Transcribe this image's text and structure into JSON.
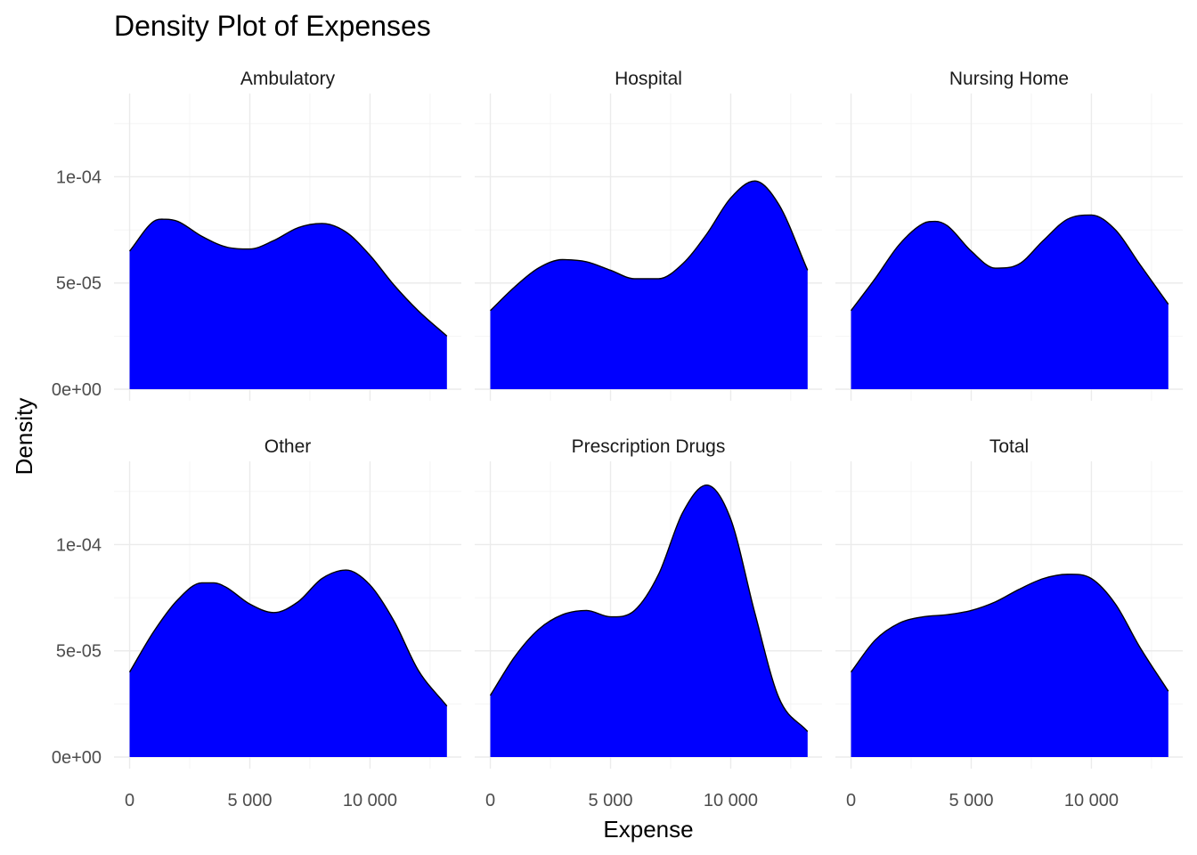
{
  "chart_data": {
    "type": "area",
    "title": "Density Plot of Expenses",
    "xlabel": "Expense",
    "ylabel": "Density",
    "fill_color": "#0000ff",
    "outline_color": "#000000",
    "grid": true,
    "xlim": [
      0,
      13200
    ],
    "ylim": [
      0,
      0.000135
    ],
    "x_ticks": [
      {
        "value": 0,
        "label": "0"
      },
      {
        "value": 5000,
        "label": "5 000"
      },
      {
        "value": 10000,
        "label": "10 000"
      }
    ],
    "y_ticks": [
      {
        "value": 0,
        "label": "0e+00"
      },
      {
        "value": 5e-05,
        "label": "5e-05"
      },
      {
        "value": 0.0001,
        "label": "1e-04"
      }
    ],
    "panels": [
      {
        "name": "Ambulatory",
        "x": [
          0,
          1000,
          1500,
          2000,
          3000,
          4000,
          5000,
          6000,
          7000,
          8000,
          9000,
          10000,
          11000,
          12000,
          13200
        ],
        "y": [
          6.5e-05,
          7.9e-05,
          8e-05,
          7.9e-05,
          7.2e-05,
          6.7e-05,
          6.6e-05,
          7e-05,
          7.6e-05,
          7.8e-05,
          7.4e-05,
          6.3e-05,
          4.9e-05,
          3.7e-05,
          2.5e-05
        ]
      },
      {
        "name": "Hospital",
        "x": [
          0,
          1000,
          2000,
          3000,
          4000,
          5000,
          6000,
          7000,
          8000,
          9000,
          10000,
          11000,
          12000,
          13200
        ],
        "y": [
          3.7e-05,
          4.8e-05,
          5.7e-05,
          6.1e-05,
          6e-05,
          5.6e-05,
          5.2e-05,
          5.2e-05,
          5.9e-05,
          7.3e-05,
          9e-05,
          9.8e-05,
          8.7e-05,
          5.6e-05
        ]
      },
      {
        "name": "Nursing Home",
        "x": [
          0,
          1000,
          2000,
          3000,
          3500,
          4000,
          5000,
          6000,
          7000,
          8000,
          9000,
          10000,
          11000,
          12000,
          13200
        ],
        "y": [
          3.7e-05,
          5.2e-05,
          6.8e-05,
          7.8e-05,
          7.9e-05,
          7.7e-05,
          6.5e-05,
          5.7e-05,
          5.9e-05,
          7e-05,
          8e-05,
          8.2e-05,
          7.5e-05,
          5.9e-05,
          4e-05
        ]
      },
      {
        "name": "Other",
        "x": [
          0,
          1000,
          2000,
          3000,
          3500,
          4000,
          5000,
          6000,
          7000,
          8000,
          9000,
          10000,
          11000,
          12000,
          13200
        ],
        "y": [
          4e-05,
          5.9e-05,
          7.4e-05,
          8.2e-05,
          8.2e-05,
          8e-05,
          7.2e-05,
          6.8e-05,
          7.3e-05,
          8.4e-05,
          8.8e-05,
          8.1e-05,
          6.4e-05,
          4.1e-05,
          2.4e-05
        ]
      },
      {
        "name": "Prescription Drugs",
        "x": [
          0,
          1000,
          2000,
          3000,
          4000,
          5000,
          6000,
          7000,
          8000,
          9000,
          10000,
          11000,
          12000,
          13200
        ],
        "y": [
          2.9e-05,
          4.7e-05,
          6e-05,
          6.7e-05,
          6.9e-05,
          6.6e-05,
          6.9e-05,
          8.6e-05,
          0.000115,
          0.000128,
          0.000112,
          6.8e-05,
          2.8e-05,
          1.2e-05
        ]
      },
      {
        "name": "Total",
        "x": [
          0,
          1000,
          2000,
          3000,
          4000,
          5000,
          6000,
          7000,
          8000,
          9000,
          10000,
          11000,
          12000,
          13200
        ],
        "y": [
          4e-05,
          5.5e-05,
          6.3e-05,
          6.6e-05,
          6.7e-05,
          6.9e-05,
          7.3e-05,
          7.9e-05,
          8.4e-05,
          8.6e-05,
          8.4e-05,
          7.2e-05,
          5.2e-05,
          3.1e-05
        ]
      }
    ]
  }
}
